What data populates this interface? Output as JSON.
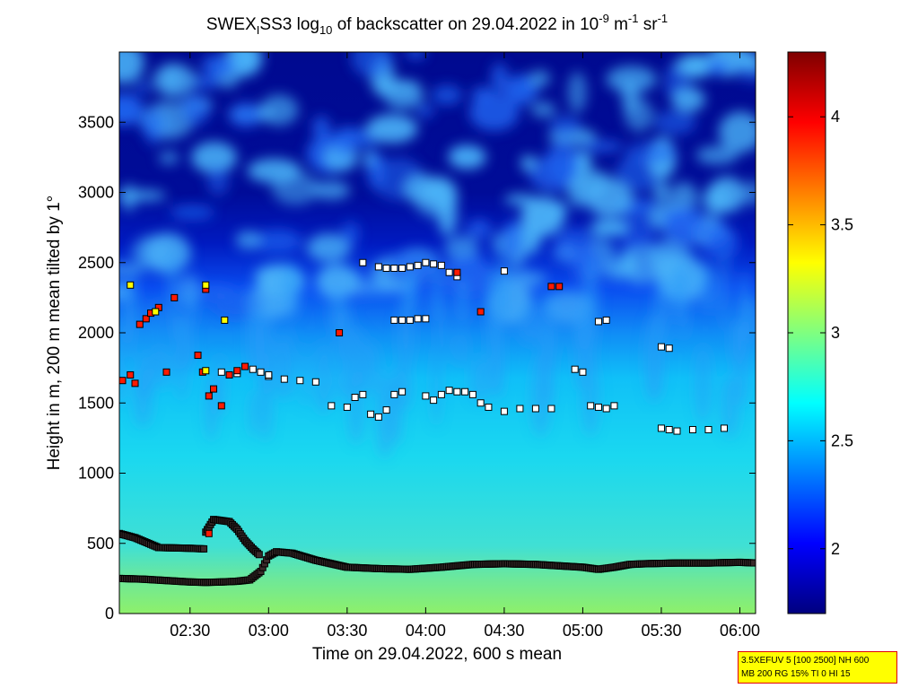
{
  "chart_data": {
    "type": "heatmap",
    "title_parts": {
      "prefix": "SWEX",
      "sub1": "I",
      "mid": "SS3 log",
      "sub2": "10",
      "middle": " of backscatter on 29.04.2022 in 10",
      "sup1": "-9",
      "unit_m": " m",
      "sup2": "-1",
      "unit_sr": " sr",
      "sup3": "-1"
    },
    "xlabel": "Time on 29.04.2022, 600 s mean",
    "ylabel": "Height in m, 200 m mean tilted by 1°",
    "x_ticks": [
      "02:30",
      "03:00",
      "03:30",
      "04:00",
      "04:30",
      "05:00",
      "05:30",
      "06:00"
    ],
    "x_tick_hours": [
      2.5,
      3.0,
      3.5,
      4.0,
      4.5,
      5.0,
      5.5,
      6.0
    ],
    "xlim_hours": [
      2.05,
      6.1
    ],
    "y_ticks": [
      "0",
      "500",
      "1000",
      "1500",
      "2000",
      "2500",
      "3000",
      "3500"
    ],
    "y_tick_values": [
      0,
      500,
      1000,
      1500,
      2000,
      2500,
      3000,
      3500
    ],
    "ylim": [
      0,
      4000
    ],
    "colorbar": {
      "ticks": [
        "2",
        "2.5",
        "3",
        "3.5",
        "4"
      ],
      "tick_values": [
        2,
        2.5,
        3,
        3.5,
        4
      ],
      "range": [
        1.7,
        4.3
      ],
      "colormap": "jet"
    },
    "mixing_layer_lower": {
      "x": [
        2.05,
        2.2,
        2.35,
        2.5,
        2.6,
        2.7,
        2.8,
        2.88,
        2.95,
        3.0,
        3.05,
        3.15,
        3.3,
        3.5,
        3.7,
        3.9,
        4.1,
        4.3,
        4.5,
        4.7,
        4.85,
        5.0,
        5.1,
        5.2,
        5.3,
        5.4,
        5.6,
        5.8,
        6.0,
        6.1
      ],
      "y": [
        250,
        245,
        235,
        225,
        222,
        225,
        230,
        240,
        300,
        410,
        440,
        430,
        380,
        330,
        320,
        315,
        330,
        350,
        355,
        350,
        340,
        330,
        315,
        330,
        350,
        355,
        360,
        360,
        365,
        360
      ]
    },
    "mixing_layer_upper": {
      "x": [
        2.05,
        2.15,
        2.3,
        2.5,
        2.6
      ],
      "y": [
        570,
        540,
        470,
        465,
        460
      ]
    },
    "mixing_layer_arc": {
      "x": [
        2.6,
        2.65,
        2.75,
        2.8,
        2.85,
        2.9,
        2.95
      ],
      "y": [
        580,
        670,
        655,
        600,
        520,
        460,
        410
      ]
    },
    "cloud_layer_points": {
      "x": [
        2.7,
        2.8,
        2.9,
        3.0,
        3.1,
        3.2,
        3.3,
        3.4,
        3.5,
        3.55,
        3.6,
        3.65,
        3.7,
        3.75,
        3.8,
        3.85,
        4.0,
        4.05,
        4.1,
        4.15,
        4.2,
        4.25,
        4.3,
        4.35,
        4.4,
        4.5,
        4.6,
        4.7,
        4.8,
        5.05,
        5.1,
        5.15,
        5.2,
        5.5,
        5.55,
        5.6,
        5.7,
        5.8,
        5.9
      ],
      "y": [
        1720,
        1710,
        1740,
        1690,
        1670,
        1660,
        1650,
        1480,
        1470,
        1540,
        1560,
        1420,
        1400,
        1450,
        1560,
        1580,
        1550,
        1520,
        1560,
        1590,
        1580,
        1580,
        1560,
        1500,
        1470,
        1440,
        1460,
        1460,
        1460,
        1480,
        1470,
        1460,
        1480,
        1320,
        1310,
        1300,
        1310,
        1310,
        1320
      ]
    },
    "upper_points": {
      "x": [
        3.6,
        3.7,
        3.75,
        3.8,
        3.85,
        3.9,
        3.95,
        4.0,
        4.05,
        4.1,
        4.15,
        4.2,
        4.5,
        3.8,
        3.85,
        3.9,
        3.95,
        4.0,
        2.95,
        3.0,
        4.95,
        5.0,
        5.1,
        5.15,
        5.5,
        5.55
      ],
      "y": [
        2500,
        2470,
        2460,
        2460,
        2460,
        2470,
        2480,
        2500,
        2490,
        2480,
        2430,
        2400,
        2440,
        2090,
        2090,
        2090,
        2100,
        2100,
        1720,
        1700,
        1740,
        1720,
        2080,
        2090,
        1900,
        1890
      ]
    },
    "red_points": {
      "x": [
        2.07,
        2.12,
        2.15,
        2.18,
        2.22,
        2.25,
        2.3,
        2.35,
        2.4,
        2.55,
        2.58,
        2.62,
        2.6,
        2.65,
        2.7,
        2.75,
        2.8,
        2.85,
        3.45,
        4.2,
        4.35,
        4.8,
        4.85,
        2.62
      ],
      "y": [
        1660,
        1700,
        1640,
        2060,
        2100,
        2140,
        2180,
        1720,
        2250,
        1840,
        1720,
        1550,
        2310,
        1600,
        1480,
        1700,
        1730,
        1760,
        2000,
        2430,
        2150,
        2330,
        2330,
        570
      ]
    },
    "yellow_points": {
      "x": [
        2.12,
        2.28,
        2.6,
        2.6,
        2.72
      ],
      "y": [
        2340,
        2150,
        2340,
        1730,
        2090
      ]
    }
  },
  "info_box": {
    "line1": "3.5XEFUV 5 [100 2500] NH 600",
    "line2": "MB 200 RG 15% TI 0 HI 15"
  }
}
